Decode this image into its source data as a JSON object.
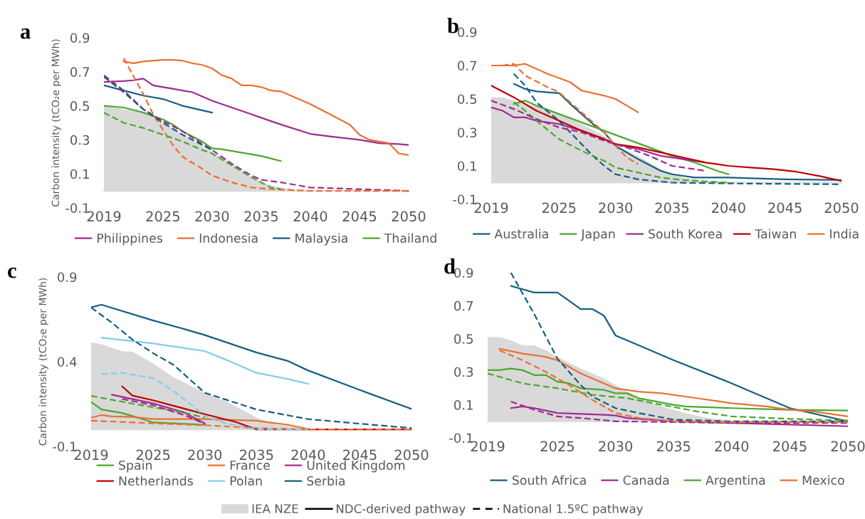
{
  "chart_data": [
    {
      "type": "line",
      "title": "a",
      "ylabel": "Carbon intensity (tCO₂e per MWh)",
      "xlim": [
        2019,
        2050
      ],
      "xticks": [
        2019,
        2025,
        2030,
        2035,
        2040,
        2045,
        2050
      ],
      "ylim": [
        -0.1,
        0.9
      ],
      "yticks": [
        -0.1,
        0.1,
        0.3,
        0.5,
        0.7,
        0.9
      ],
      "grid": false,
      "legend": "bottom",
      "series": [
        {
          "type": "area",
          "color": "#d9d9d9",
          "x": [
            2019,
            2020,
            2022,
            2024,
            2025,
            2027,
            2030,
            2032,
            2034,
            2036,
            2038,
            2040,
            2045,
            2050
          ],
          "values": [
            0.5,
            0.49,
            0.47,
            0.44,
            0.4,
            0.33,
            0.23,
            0.16,
            0.08,
            0.03,
            0.01,
            0.005,
            0,
            0
          ]
        },
        {
          "name": "Philippines",
          "color": "#a02b93",
          "x": [
            2019,
            2021,
            2022,
            2023,
            2024,
            2025,
            2026,
            2027,
            2028,
            2030,
            2032,
            2034,
            2035,
            2037,
            2040,
            2042,
            2045,
            2047,
            2049,
            2050
          ],
          "values": [
            0.64,
            0.645,
            0.65,
            0.66,
            0.62,
            0.61,
            0.6,
            0.59,
            0.58,
            0.53,
            0.49,
            0.45,
            0.43,
            0.39,
            0.335,
            0.32,
            0.3,
            0.28,
            0.275,
            0.27
          ]
        },
        {
          "name": "Indonesia",
          "color": "#e97132",
          "x": [
            2021,
            2022,
            2023,
            2025,
            2026,
            2027,
            2028,
            2029,
            2030,
            2031,
            2032,
            2033,
            2034,
            2035,
            2036,
            2037,
            2040,
            2042,
            2044,
            2045,
            2046,
            2048,
            2049,
            2050
          ],
          "values": [
            0.76,
            0.75,
            0.76,
            0.77,
            0.77,
            0.765,
            0.75,
            0.74,
            0.72,
            0.68,
            0.66,
            0.62,
            0.62,
            0.61,
            0.59,
            0.585,
            0.51,
            0.45,
            0.39,
            0.33,
            0.3,
            0.28,
            0.22,
            0.21
          ]
        },
        {
          "name": "Malaysia",
          "color": "#156082",
          "x": [
            2019,
            2021,
            2023,
            2025,
            2026,
            2027,
            2030
          ],
          "values": [
            0.62,
            0.59,
            0.56,
            0.54,
            0.52,
            0.5,
            0.46
          ]
        },
        {
          "name": "Thailand",
          "color": "#4ea72e",
          "x": [
            2019,
            2021,
            2023,
            2025,
            2026,
            2027,
            2029,
            2030,
            2031,
            2033,
            2035,
            2036,
            2037
          ],
          "values": [
            0.5,
            0.49,
            0.46,
            0.42,
            0.39,
            0.35,
            0.29,
            0.25,
            0.245,
            0.225,
            0.205,
            0.19,
            0.175
          ]
        },
        {
          "color": "#a02b93",
          "line_style": "dashed",
          "x": [
            2019,
            2021,
            2023,
            2025,
            2027,
            2030,
            2032,
            2034,
            2035,
            2037,
            2040,
            2045,
            2050
          ],
          "values": [
            0.68,
            0.59,
            0.48,
            0.41,
            0.35,
            0.24,
            0.16,
            0.09,
            0.065,
            0.05,
            0.02,
            0.01,
            0.0
          ]
        },
        {
          "color": "#e97132",
          "line_style": "dashed",
          "x": [
            2021,
            2023,
            2024,
            2025,
            2026,
            2027,
            2029,
            2030,
            2032,
            2034,
            2036,
            2040,
            2050
          ],
          "values": [
            0.78,
            0.57,
            0.45,
            0.36,
            0.27,
            0.2,
            0.13,
            0.09,
            0.05,
            0.02,
            0.01,
            0.0,
            0.0
          ]
        },
        {
          "color": "#156082",
          "line_style": "dashed",
          "x": [
            2019,
            2021,
            2023,
            2025,
            2027,
            2030
          ],
          "values": [
            0.67,
            0.58,
            0.48,
            0.4,
            0.33,
            0.24
          ]
        },
        {
          "color": "#4ea72e",
          "line_style": "dashed",
          "x": [
            2019,
            2021,
            2023,
            2025,
            2027,
            2029,
            2030,
            2032,
            2034,
            2035,
            2036,
            2037
          ],
          "values": [
            0.46,
            0.4,
            0.37,
            0.33,
            0.29,
            0.24,
            0.22,
            0.15,
            0.08,
            0.05,
            0.02,
            0.01
          ]
        }
      ]
    },
    {
      "type": "line",
      "title": "b",
      "xlim": [
        2019,
        2050
      ],
      "xticks": [
        2019,
        2025,
        2030,
        2035,
        2040,
        2045,
        2050
      ],
      "ylim": [
        -0.1,
        0.9
      ],
      "yticks": [
        -0.1,
        0.1,
        0.3,
        0.5,
        0.7,
        0.9
      ],
      "grid": false,
      "legend": "bottom",
      "series": [
        {
          "type": "area",
          "color": "#d9d9d9",
          "x": [
            2019,
            2020,
            2021,
            2022,
            2024,
            2025,
            2027,
            2029,
            2030,
            2032,
            2034,
            2036,
            2038,
            2040,
            2042,
            2050
          ],
          "values": [
            0.51,
            0.51,
            0.49,
            0.47,
            0.44,
            0.41,
            0.35,
            0.28,
            0.22,
            0.16,
            0.08,
            0.03,
            0.01,
            0.005,
            0,
            0
          ]
        },
        {
          "name": "Australia",
          "color": "#156082",
          "x": [
            2021,
            2022,
            2023,
            2025,
            2026,
            2028,
            2029,
            2030,
            2032,
            2034,
            2035,
            2037,
            2040,
            2045,
            2050
          ],
          "values": [
            0.59,
            0.56,
            0.545,
            0.535,
            0.47,
            0.35,
            0.3,
            0.22,
            0.14,
            0.07,
            0.05,
            0.03,
            0.03,
            0.02,
            0.015
          ]
        },
        {
          "name": "Japan",
          "color": "#4ea72e",
          "x": [
            2021,
            2022,
            2023,
            2025,
            2027,
            2029,
            2031,
            2033,
            2035,
            2037,
            2039,
            2040
          ],
          "values": [
            0.47,
            0.49,
            0.46,
            0.41,
            0.36,
            0.31,
            0.26,
            0.21,
            0.16,
            0.12,
            0.07,
            0.05
          ]
        },
        {
          "name": "South Korea",
          "color": "#a02b93",
          "x": [
            2019,
            2020,
            2021,
            2022,
            2023,
            2025,
            2027,
            2029,
            2030,
            2032,
            2034,
            2036,
            2038
          ],
          "values": [
            0.45,
            0.43,
            0.39,
            0.39,
            0.37,
            0.35,
            0.31,
            0.26,
            0.23,
            0.2,
            0.16,
            0.14,
            0.12
          ]
        },
        {
          "name": "Taiwan",
          "color": "#c00000",
          "x": [
            2019,
            2021,
            2023,
            2025,
            2027,
            2029,
            2030,
            2032,
            2034,
            2036,
            2038,
            2040,
            2042,
            2044,
            2046,
            2048,
            2050
          ],
          "values": [
            0.58,
            0.51,
            0.43,
            0.37,
            0.31,
            0.26,
            0.23,
            0.21,
            0.18,
            0.15,
            0.12,
            0.1,
            0.09,
            0.08,
            0.065,
            0.04,
            0.01
          ]
        },
        {
          "name": "India",
          "color": "#e97132",
          "x": [
            2019,
            2020,
            2021,
            2022,
            2024,
            2026,
            2027,
            2029,
            2030,
            2031,
            2032
          ],
          "values": [
            0.7,
            0.7,
            0.7,
            0.71,
            0.65,
            0.6,
            0.55,
            0.52,
            0.5,
            0.46,
            0.42
          ]
        },
        {
          "color": "#156082",
          "line_style": "dashed",
          "x": [
            2021,
            2022,
            2023,
            2025,
            2027,
            2028,
            2029,
            2030,
            2032,
            2035,
            2040,
            2050
          ],
          "values": [
            0.65,
            0.58,
            0.48,
            0.37,
            0.23,
            0.16,
            0.1,
            0.05,
            0.02,
            0.0,
            -0.005,
            -0.01
          ]
        },
        {
          "color": "#4ea72e",
          "line_style": "dashed",
          "x": [
            2021,
            2022,
            2023,
            2025,
            2027,
            2029,
            2030,
            2032,
            2034,
            2036,
            2040
          ],
          "values": [
            0.48,
            0.43,
            0.37,
            0.26,
            0.19,
            0.13,
            0.09,
            0.06,
            0.03,
            0.015,
            0.0
          ]
        },
        {
          "color": "#a02b93",
          "line_style": "dashed",
          "x": [
            2019,
            2021,
            2023,
            2025,
            2027,
            2029,
            2031,
            2033,
            2035,
            2037,
            2038
          ],
          "values": [
            0.49,
            0.44,
            0.38,
            0.33,
            0.3,
            0.25,
            0.21,
            0.16,
            0.1,
            0.08,
            0.07
          ]
        },
        {
          "color": "#e97132",
          "line_style": "dashed",
          "x": [
            2020,
            2021,
            2022,
            2024,
            2025,
            2027,
            2029,
            2030,
            2031,
            2032
          ],
          "values": [
            0.7,
            0.71,
            0.64,
            0.57,
            0.54,
            0.42,
            0.3,
            0.22,
            0.15,
            0.11
          ]
        }
      ]
    },
    {
      "type": "line",
      "title": "c",
      "ylabel": "Carbon intensity (tCO₂e per MWh)",
      "xlim": [
        2019,
        2050
      ],
      "xticks": [
        2019,
        2025,
        2030,
        2035,
        2040,
        2045,
        2050
      ],
      "ylim": [
        -0.1,
        0.9
      ],
      "yticks": [
        -0.1,
        0.4,
        0.9
      ],
      "grid": false,
      "legend": "bottom",
      "series": [
        {
          "type": "area",
          "color": "#d9d9d9",
          "x": [
            2019,
            2020,
            2022,
            2023,
            2025,
            2027,
            2030,
            2032,
            2034,
            2035,
            2037,
            2040,
            2050
          ],
          "values": [
            0.515,
            0.503,
            0.462,
            0.459,
            0.389,
            0.307,
            0.216,
            0.167,
            0.105,
            0.069,
            0.028,
            0.005,
            0
          ]
        },
        {
          "name": "Spain",
          "color": "#4ea72e",
          "x": [
            2019,
            2020,
            2022,
            2024,
            2025,
            2027,
            2030
          ],
          "values": [
            0.162,
            0.118,
            0.097,
            0.061,
            0.041,
            0.036,
            0.028
          ]
        },
        {
          "name": "France",
          "color": "#e97132",
          "x": [
            2019,
            2020,
            2021,
            2023,
            2025,
            2030,
            2035,
            2038,
            2040
          ],
          "values": [
            0.069,
            0.085,
            0.077,
            0.074,
            0.061,
            0.061,
            0.052,
            0.028,
            0.003
          ]
        },
        {
          "name": "United Kingdom",
          "color": "#a02b93",
          "x": [
            2021,
            2025,
            2028,
            2030
          ],
          "values": [
            0.205,
            0.154,
            0.1,
            0.036
          ]
        },
        {
          "name": "Netherlands",
          "color": "#c00000",
          "x": [
            2022,
            2023,
            2025,
            2030,
            2033,
            2035,
            2050
          ],
          "values": [
            0.254,
            0.2,
            0.172,
            0.09,
            0.044,
            0.0,
            0.0
          ]
        },
        {
          "name": "Polan",
          "color": "#83cbeb",
          "x": [
            2020,
            2025,
            2030,
            2032,
            2035,
            2038,
            2040
          ],
          "values": [
            0.541,
            0.508,
            0.462,
            0.413,
            0.334,
            0.298,
            0.269
          ]
        },
        {
          "name": "Serbia",
          "color": "#156082",
          "x": [
            2019,
            2020,
            2025,
            2028,
            2030,
            2035,
            2038,
            2040,
            2045,
            2050
          ],
          "values": [
            0.721,
            0.736,
            0.643,
            0.593,
            0.557,
            0.454,
            0.405,
            0.348,
            0.233,
            0.121
          ]
        },
        {
          "color": "#4ea72e",
          "line_style": "dashed",
          "x": [
            2019,
            2021,
            2025,
            2028,
            2030
          ],
          "values": [
            0.198,
            0.175,
            0.13,
            0.1,
            0.069
          ]
        },
        {
          "color": "#e97132",
          "line_style": "dashed",
          "x": [
            2019,
            2025,
            2030,
            2035,
            2040,
            2050
          ],
          "values": [
            0.052,
            0.036,
            0.025,
            0.008,
            0.0,
            0.0
          ]
        },
        {
          "color": "#a02b93",
          "line_style": "dashed",
          "x": [
            2022,
            2025,
            2028,
            2030
          ],
          "values": [
            0.18,
            0.143,
            0.085,
            0.033
          ]
        },
        {
          "color": "#83cbeb",
          "line_style": "dashed",
          "x": [
            2020,
            2022,
            2025,
            2027,
            2029,
            2030,
            2032,
            2035,
            2040
          ],
          "values": [
            0.326,
            0.334,
            0.303,
            0.225,
            0.131,
            0.077,
            0.036,
            0.0,
            0.0
          ]
        },
        {
          "color": "#156082",
          "line_style": "dashed",
          "x": [
            2019,
            2021,
            2023,
            2025,
            2027,
            2030,
            2035,
            2040,
            2045,
            2050
          ],
          "values": [
            0.72,
            0.63,
            0.53,
            0.45,
            0.38,
            0.216,
            0.118,
            0.061,
            0.034,
            0.008
          ]
        }
      ]
    },
    {
      "type": "line",
      "title": "d",
      "xlim": [
        2019,
        2050
      ],
      "xticks": [
        2019,
        2025,
        2030,
        2035,
        2040,
        2045,
        2050
      ],
      "ylim": [
        -0.1,
        0.9
      ],
      "yticks": [
        -0.1,
        0.1,
        0.3,
        0.5,
        0.7,
        0.9
      ],
      "grid": false,
      "legend": "bottom",
      "annotations": [
        "NDC-derived pathway",
        "National 1.5ºC pathway"
      ],
      "series": [
        {
          "type": "area",
          "name": "IEA NZE",
          "color": "#d9d9d9",
          "x": [
            2019,
            2020,
            2021,
            2022,
            2023,
            2024,
            2025,
            2027,
            2029,
            2030,
            2032,
            2034,
            2036,
            2038,
            2040,
            2045,
            2050
          ],
          "values": [
            0.51,
            0.51,
            0.49,
            0.46,
            0.46,
            0.43,
            0.39,
            0.32,
            0.26,
            0.22,
            0.14,
            0.09,
            0.05,
            0.02,
            0.005,
            0,
            0
          ]
        },
        {
          "name": "South Africa",
          "color": "#156082",
          "x": [
            2021,
            2022,
            2023,
            2025,
            2026,
            2027,
            2028,
            2029,
            2030,
            2032,
            2035,
            2040,
            2045,
            2050
          ],
          "values": [
            0.82,
            0.8,
            0.78,
            0.78,
            0.73,
            0.68,
            0.68,
            0.64,
            0.52,
            0.46,
            0.37,
            0.23,
            0.08,
            0.0
          ]
        },
        {
          "name": "Canada",
          "color": "#a02b93",
          "x": [
            2021,
            2022,
            2023,
            2025,
            2027,
            2029,
            2030,
            2031,
            2033,
            2035,
            2040,
            2045,
            2050
          ],
          "values": [
            0.08,
            0.09,
            0.08,
            0.05,
            0.045,
            0.04,
            0.035,
            0.02,
            0.01,
            0.0,
            -0.01,
            -0.02,
            -0.03
          ]
        },
        {
          "name": "Argentina",
          "color": "#4ea72e",
          "x": [
            2019,
            2020,
            2021,
            2022,
            2023,
            2024,
            2025,
            2026,
            2027,
            2029,
            2030,
            2031,
            2032,
            2035,
            2036,
            2040,
            2045,
            2050
          ],
          "values": [
            0.31,
            0.31,
            0.32,
            0.31,
            0.28,
            0.28,
            0.24,
            0.23,
            0.2,
            0.19,
            0.17,
            0.17,
            0.14,
            0.1,
            0.09,
            0.08,
            0.07,
            0.065
          ]
        },
        {
          "name": "Mexico",
          "color": "#e97132",
          "x": [
            2020,
            2022,
            2024,
            2025,
            2027,
            2028,
            2030,
            2032,
            2034,
            2036,
            2040,
            2043,
            2045,
            2047,
            2050
          ],
          "values": [
            0.44,
            0.41,
            0.39,
            0.37,
            0.29,
            0.26,
            0.2,
            0.18,
            0.17,
            0.15,
            0.11,
            0.09,
            0.07,
            0.06,
            0.03
          ]
        },
        {
          "color": "#156082",
          "line_style": "dashed",
          "x": [
            2021,
            2023,
            2025,
            2027,
            2028,
            2030,
            2032,
            2035,
            2040,
            2050
          ],
          "values": [
            0.9,
            0.65,
            0.38,
            0.22,
            0.15,
            0.08,
            0.05,
            0.01,
            0.0,
            0.0
          ]
        },
        {
          "color": "#a02b93",
          "line_style": "dashed",
          "x": [
            2021,
            2023,
            2025,
            2027,
            2030,
            2035,
            2040,
            2050
          ],
          "values": [
            0.12,
            0.07,
            0.03,
            0.02,
            0.0,
            -0.005,
            -0.01,
            -0.01
          ]
        },
        {
          "color": "#4ea72e",
          "line_style": "dashed",
          "x": [
            2019,
            2022,
            2025,
            2028,
            2031,
            2034,
            2037,
            2040,
            2045,
            2050
          ],
          "values": [
            0.29,
            0.23,
            0.2,
            0.16,
            0.14,
            0.1,
            0.06,
            0.03,
            0.015,
            0.005
          ]
        },
        {
          "color": "#e97132",
          "line_style": "dashed",
          "x": [
            2020,
            2022,
            2024,
            2026,
            2028,
            2030,
            2032,
            2035,
            2040,
            2050
          ],
          "values": [
            0.43,
            0.37,
            0.3,
            0.22,
            0.13,
            0.05,
            0.02,
            0.0,
            -0.005,
            -0.005
          ]
        }
      ]
    }
  ]
}
